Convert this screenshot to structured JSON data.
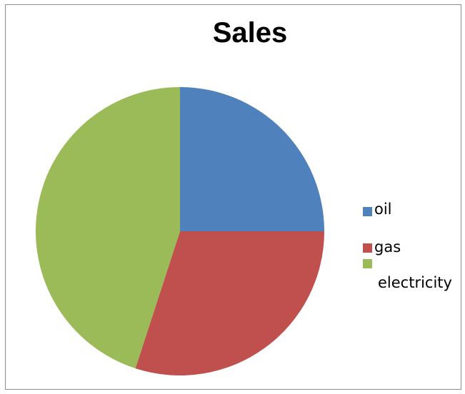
{
  "chart_data": {
    "type": "pie",
    "title": "Sales",
    "categories": [
      "oil",
      "gas",
      "electricity"
    ],
    "values": [
      25,
      30,
      45
    ],
    "colors": [
      "#4f81bd",
      "#c0504d",
      "#9bbb59"
    ],
    "legend_position": "right",
    "start_angle": "12-o'clock",
    "direction": "clockwise"
  }
}
